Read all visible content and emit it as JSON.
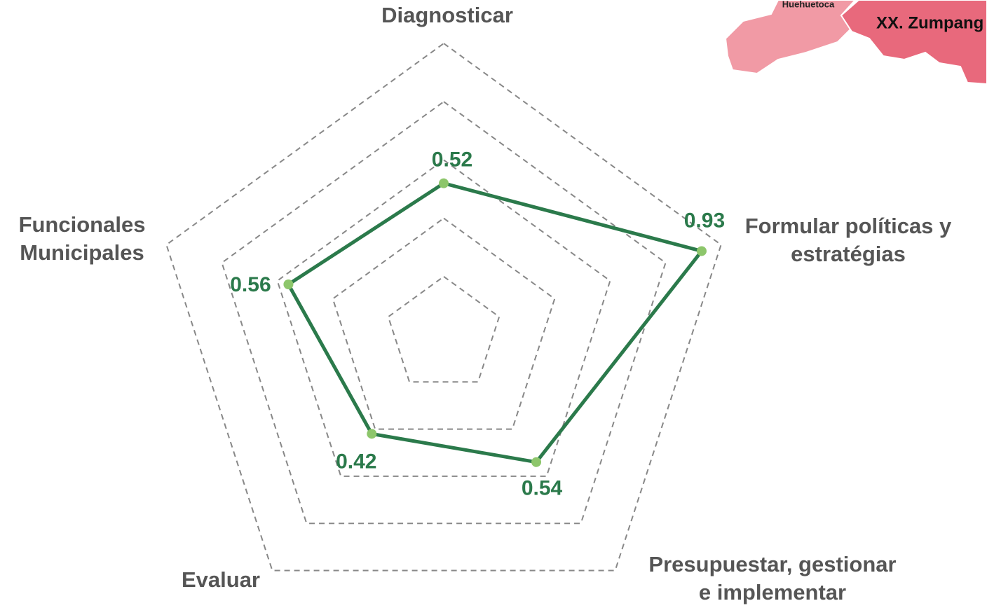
{
  "chart_data": {
    "type": "radar",
    "categories": [
      [
        "Diagnosticar"
      ],
      [
        "Formular políticas y",
        "estratégias"
      ],
      [
        "Presupuestar, gestionar",
        "e implementar"
      ],
      [
        "Evaluar"
      ],
      [
        "Funcionales",
        "Municipales"
      ]
    ],
    "series": [
      {
        "color": "#2b7a4b",
        "marker_color": "#8dc66b",
        "values": [
          0.52,
          0.93,
          0.54,
          0.42,
          0.56
        ]
      }
    ],
    "rlim": [
      0,
      1
    ],
    "rticks": [
      0.2,
      0.4,
      0.6,
      0.8,
      1.0
    ],
    "grid": true
  },
  "map": {
    "labels": [
      "Huehuetoca",
      "XX. Zumpang"
    ]
  }
}
